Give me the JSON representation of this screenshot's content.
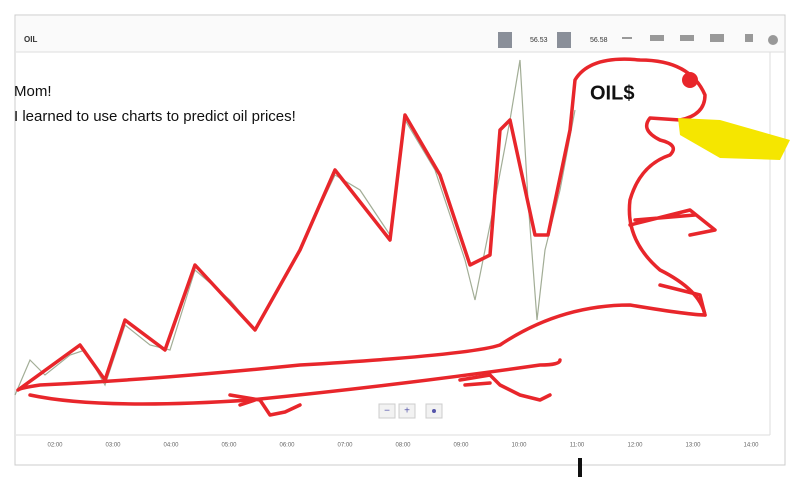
{
  "toolbar": {
    "symbol": "OIL",
    "sell_price": "56.53",
    "buy_price": "56.58"
  },
  "caption": {
    "line1": "Mom!",
    "line2": "I learned to use charts to predict oil prices!"
  },
  "drawing_label": "OIL$",
  "x_axis": {
    "labels": [
      "02:00",
      "03:00",
      "04:00",
      "05:00",
      "06:00",
      "07:00",
      "08:00",
      "09:00",
      "10:00",
      "11:00",
      "12:00",
      "13:00",
      "14:00"
    ]
  }
}
